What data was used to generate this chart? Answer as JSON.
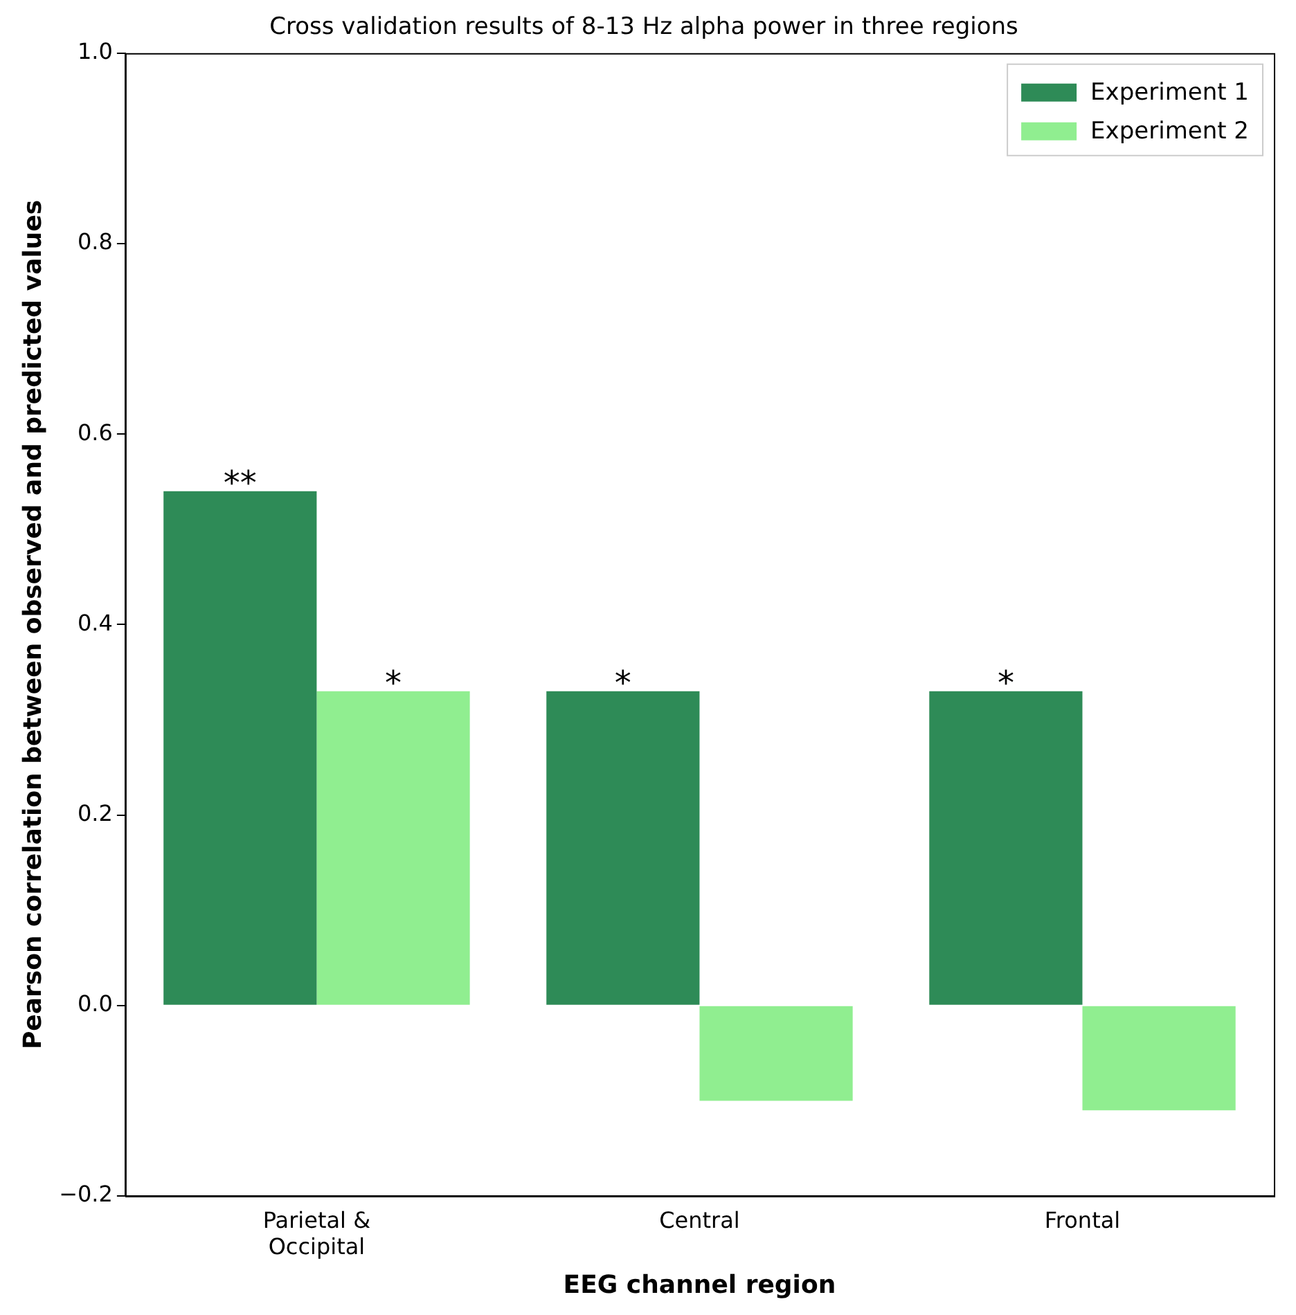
{
  "chart_data": {
    "type": "bar",
    "title": "Cross validation results of 8-13 Hz alpha power in three regions",
    "xlabel": "EEG channel region",
    "ylabel": "Pearson correlation between observed and predicted values",
    "categories": [
      "Parietal &\nOccipital",
      "Central",
      "Frontal"
    ],
    "series": [
      {
        "name": "Experiment 1",
        "color": "#2e8b57",
        "values": [
          0.54,
          0.33,
          0.33
        ]
      },
      {
        "name": "Experiment 2",
        "color": "#90ee90",
        "values": [
          0.33,
          -0.1,
          -0.11
        ]
      }
    ],
    "ylim": [
      -0.2,
      1.0
    ],
    "yticks": [
      {
        "value": -0.2,
        "label": "−0.2"
      },
      {
        "value": 0,
        "label": "0.0"
      },
      {
        "value": 0.2,
        "label": "0.2"
      },
      {
        "value": 0.4,
        "label": "0.4"
      },
      {
        "value": 0.6,
        "label": "0.6"
      },
      {
        "value": 0.8,
        "label": "0.8"
      },
      {
        "value": 1.0,
        "label": "1.0"
      }
    ],
    "grid": false,
    "legend": "top right",
    "annotations": [
      {
        "text": "**",
        "x": "Parietal &\nOccipital",
        "y": 0.54
      },
      {
        "text": "*",
        "x": "Parietal &\nOccipital",
        "y": 0.33
      },
      {
        "text": "*",
        "x": "Central",
        "y": 0.33
      },
      {
        "text": "*",
        "x": "Frontal",
        "y": 0.33
      }
    ]
  }
}
